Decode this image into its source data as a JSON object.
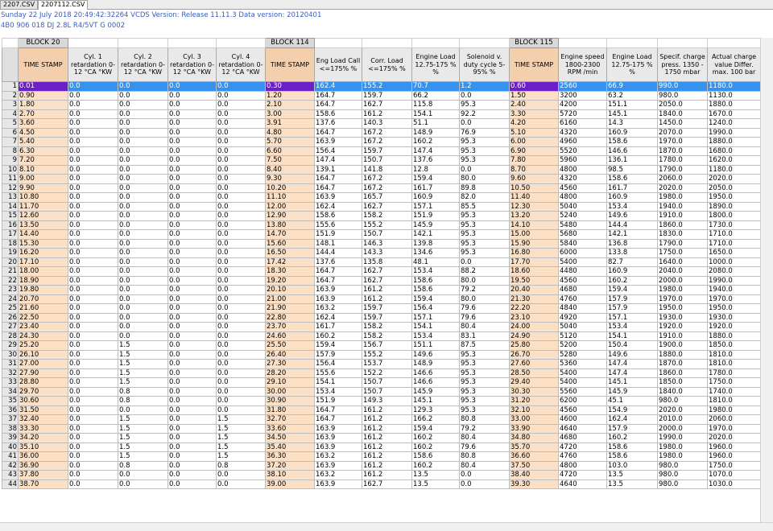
{
  "tabs": [
    {
      "label": "2207.CSV",
      "active": false
    },
    {
      "label": "2207112.CSV",
      "active": true
    }
  ],
  "info": {
    "line1": "Sunday 22 July 2018 20:49:42:32264 VCDS Version: Release 11.11.3 Data version: 20120401",
    "line2": "4B0 906 018 DJ  2.8L R4/5VT     G   0002"
  },
  "blocks": [
    "BLOCK 20",
    "BLOCK 114",
    "BLOCK 115"
  ],
  "headers": [
    "TIME STAMP",
    "Cyl. 1 retardation 0-12 °CA °KW",
    "Cyl. 2 retardation 0-12 °CA °KW",
    "Cyl. 3 retardation 0-12 °CA °KW",
    "Cyl. 4 retardation 0-12 °CA °KW",
    "TIME STAMP",
    "Eng Load Call <=175% %",
    "Corr. Load <=175% %",
    "Engine Load 12.75-175 % %",
    "Solenoid v. duty cycle 5-95% %",
    "TIME STAMP",
    "Engine speed 1800-2300 RPM /min",
    "Engine Load 12.75-175 % %",
    "Specif. charge press. 1350 - 1750 mbar",
    "Actual charge value Differ. max. 100 bar"
  ],
  "rows": [
    [
      "0.01",
      "0.0",
      "0.0",
      "0.0",
      "0.0",
      "0.30",
      "162.4",
      "155.2",
      "70.7",
      "1.2",
      "0.60",
      "2560",
      "66.9",
      "990.0",
      "1180.0"
    ],
    [
      "0.90",
      "0.0",
      "0.0",
      "0.0",
      "0.0",
      "1.20",
      "164.7",
      "159.7",
      "66.2",
      "0.0",
      "1.50",
      "3200",
      "63.2",
      "980.0",
      "1130.0"
    ],
    [
      "1.80",
      "0.0",
      "0.0",
      "0.0",
      "0.0",
      "2.10",
      "164.7",
      "162.7",
      "115.8",
      "95.3",
      "2.40",
      "4200",
      "151.1",
      "2050.0",
      "1880.0"
    ],
    [
      "2.70",
      "0.0",
      "0.0",
      "0.0",
      "0.0",
      "3.00",
      "158.6",
      "161.2",
      "154.1",
      "92.2",
      "3.30",
      "5720",
      "145.1",
      "1840.0",
      "1670.0"
    ],
    [
      "3.60",
      "0.0",
      "0.0",
      "0.0",
      "0.0",
      "3.91",
      "137.6",
      "140.3",
      "51.1",
      "0.0",
      "4.20",
      "6160",
      "14.3",
      "1450.0",
      "1240.0"
    ],
    [
      "4.50",
      "0.0",
      "0.0",
      "0.0",
      "0.0",
      "4.80",
      "164.7",
      "167.2",
      "148.9",
      "76.9",
      "5.10",
      "4320",
      "160.9",
      "2070.0",
      "1990.0"
    ],
    [
      "5.40",
      "0.0",
      "0.0",
      "0.0",
      "0.0",
      "5.70",
      "163.9",
      "167.2",
      "160.2",
      "95.3",
      "6.00",
      "4960",
      "158.6",
      "1970.0",
      "1880.0"
    ],
    [
      "6.30",
      "0.0",
      "0.0",
      "0.0",
      "0.0",
      "6.60",
      "156.4",
      "159.7",
      "147.4",
      "95.3",
      "6.90",
      "5520",
      "146.6",
      "1870.0",
      "1680.0"
    ],
    [
      "7.20",
      "0.0",
      "0.0",
      "0.0",
      "0.0",
      "7.50",
      "147.4",
      "150.7",
      "137.6",
      "95.3",
      "7.80",
      "5960",
      "136.1",
      "1780.0",
      "1620.0"
    ],
    [
      "8.10",
      "0.0",
      "0.0",
      "0.0",
      "0.0",
      "8.40",
      "139.1",
      "141.8",
      "12.8",
      "0.0",
      "8.70",
      "4800",
      "98.5",
      "1790.0",
      "1180.0"
    ],
    [
      "9.00",
      "0.0",
      "0.0",
      "0.0",
      "0.0",
      "9.30",
      "164.7",
      "167.2",
      "159.4",
      "80.0",
      "9.60",
      "4320",
      "158.6",
      "2060.0",
      "2020.0"
    ],
    [
      "9.90",
      "0.0",
      "0.0",
      "0.0",
      "0.0",
      "10.20",
      "164.7",
      "167.2",
      "161.7",
      "89.8",
      "10.50",
      "4560",
      "161.7",
      "2020.0",
      "2050.0"
    ],
    [
      "10.80",
      "0.0",
      "0.0",
      "0.0",
      "0.0",
      "11.10",
      "163.9",
      "165.7",
      "160.9",
      "82.0",
      "11.40",
      "4800",
      "160.9",
      "1980.0",
      "1950.0"
    ],
    [
      "11.70",
      "0.0",
      "0.0",
      "0.0",
      "0.0",
      "12.00",
      "162.4",
      "162.7",
      "157.1",
      "85.5",
      "12.30",
      "5040",
      "153.4",
      "1940.0",
      "1890.0"
    ],
    [
      "12.60",
      "0.0",
      "0.0",
      "0.0",
      "0.0",
      "12.90",
      "158.6",
      "158.2",
      "151.9",
      "95.3",
      "13.20",
      "5240",
      "149.6",
      "1910.0",
      "1800.0"
    ],
    [
      "13.50",
      "0.0",
      "0.0",
      "0.0",
      "0.0",
      "13.80",
      "155.6",
      "155.2",
      "145.9",
      "95.3",
      "14.10",
      "5480",
      "144.4",
      "1860.0",
      "1730.0"
    ],
    [
      "14.40",
      "0.0",
      "0.0",
      "0.0",
      "0.0",
      "14.70",
      "151.9",
      "150.7",
      "142.1",
      "95.3",
      "15.00",
      "5680",
      "142.1",
      "1830.0",
      "1710.0"
    ],
    [
      "15.30",
      "0.0",
      "0.0",
      "0.0",
      "0.0",
      "15.60",
      "148.1",
      "146.3",
      "139.8",
      "95.3",
      "15.90",
      "5840",
      "136.8",
      "1790.0",
      "1710.0"
    ],
    [
      "16.20",
      "0.0",
      "0.0",
      "0.0",
      "0.0",
      "16.50",
      "144.4",
      "143.3",
      "134.6",
      "95.3",
      "16.80",
      "6000",
      "133.8",
      "1750.0",
      "1650.0"
    ],
    [
      "17.10",
      "0.0",
      "0.0",
      "0.0",
      "0.0",
      "17.42",
      "137.6",
      "135.8",
      "48.1",
      "0.0",
      "17.70",
      "5400",
      "82.7",
      "1640.0",
      "1000.0"
    ],
    [
      "18.00",
      "0.0",
      "0.0",
      "0.0",
      "0.0",
      "18.30",
      "164.7",
      "162.7",
      "153.4",
      "88.2",
      "18.60",
      "4480",
      "160.9",
      "2040.0",
      "2080.0"
    ],
    [
      "18.90",
      "0.0",
      "0.0",
      "0.0",
      "0.0",
      "19.20",
      "164.7",
      "162.7",
      "158.6",
      "80.0",
      "19.50",
      "4560",
      "160.2",
      "2000.0",
      "1990.0"
    ],
    [
      "19.80",
      "0.0",
      "0.0",
      "0.0",
      "0.0",
      "20.10",
      "163.9",
      "161.2",
      "158.6",
      "79.2",
      "20.40",
      "4680",
      "159.4",
      "1980.0",
      "1940.0"
    ],
    [
      "20.70",
      "0.0",
      "0.0",
      "0.0",
      "0.0",
      "21.00",
      "163.9",
      "161.2",
      "159.4",
      "80.0",
      "21.30",
      "4760",
      "157.9",
      "1970.0",
      "1970.0"
    ],
    [
      "21.60",
      "0.0",
      "0.0",
      "0.0",
      "0.0",
      "21.90",
      "163.2",
      "159.7",
      "156.4",
      "79.6",
      "22.20",
      "4840",
      "157.9",
      "1950.0",
      "1950.0"
    ],
    [
      "22.50",
      "0.0",
      "0.0",
      "0.0",
      "0.0",
      "22.80",
      "162.4",
      "159.7",
      "157.1",
      "79.6",
      "23.10",
      "4920",
      "157.1",
      "1930.0",
      "1930.0"
    ],
    [
      "23.40",
      "0.0",
      "0.0",
      "0.0",
      "0.0",
      "23.70",
      "161.7",
      "158.2",
      "154.1",
      "80.4",
      "24.00",
      "5040",
      "153.4",
      "1920.0",
      "1920.0"
    ],
    [
      "24.30",
      "0.0",
      "0.0",
      "0.0",
      "0.0",
      "24.60",
      "160.2",
      "158.2",
      "153.4",
      "83.1",
      "24.90",
      "5120",
      "154.1",
      "1910.0",
      "1880.0"
    ],
    [
      "25.20",
      "0.0",
      "1.5",
      "0.0",
      "0.0",
      "25.50",
      "159.4",
      "156.7",
      "151.1",
      "87.5",
      "25.80",
      "5200",
      "150.4",
      "1900.0",
      "1850.0"
    ],
    [
      "26.10",
      "0.0",
      "1.5",
      "0.0",
      "0.0",
      "26.40",
      "157.9",
      "155.2",
      "149.6",
      "95.3",
      "26.70",
      "5280",
      "149.6",
      "1880.0",
      "1810.0"
    ],
    [
      "27.00",
      "0.0",
      "1.5",
      "0.0",
      "0.0",
      "27.30",
      "156.4",
      "153.7",
      "148.9",
      "95.3",
      "27.60",
      "5360",
      "147.4",
      "1870.0",
      "1810.0"
    ],
    [
      "27.90",
      "0.0",
      "1.5",
      "0.0",
      "0.0",
      "28.20",
      "155.6",
      "152.2",
      "146.6",
      "95.3",
      "28.50",
      "5400",
      "147.4",
      "1860.0",
      "1780.0"
    ],
    [
      "28.80",
      "0.0",
      "1.5",
      "0.0",
      "0.0",
      "29.10",
      "154.1",
      "150.7",
      "146.6",
      "95.3",
      "29.40",
      "5400",
      "145.1",
      "1850.0",
      "1750.0"
    ],
    [
      "29.70",
      "0.0",
      "0.8",
      "0.0",
      "0.0",
      "30.00",
      "153.4",
      "150.7",
      "145.9",
      "95.3",
      "30.30",
      "5560",
      "145.9",
      "1840.0",
      "1740.0"
    ],
    [
      "30.60",
      "0.0",
      "0.8",
      "0.0",
      "0.0",
      "30.90",
      "151.9",
      "149.3",
      "145.1",
      "95.3",
      "31.20",
      "6200",
      "45.1",
      "980.0",
      "1810.0"
    ],
    [
      "31.50",
      "0.0",
      "0.0",
      "0.0",
      "0.0",
      "31.80",
      "164.7",
      "161.2",
      "129.3",
      "95.3",
      "32.10",
      "4560",
      "154.9",
      "2020.0",
      "1980.0"
    ],
    [
      "32.40",
      "0.0",
      "1.5",
      "0.0",
      "1.5",
      "32.70",
      "164.7",
      "161.2",
      "166.2",
      "80.8",
      "33.00",
      "4600",
      "162.4",
      "2010.0",
      "2060.0"
    ],
    [
      "33.30",
      "0.0",
      "1.5",
      "0.0",
      "1.5",
      "33.60",
      "163.9",
      "161.2",
      "159.4",
      "79.2",
      "33.90",
      "4640",
      "157.9",
      "2000.0",
      "1970.0"
    ],
    [
      "34.20",
      "0.0",
      "1.5",
      "0.0",
      "1.5",
      "34.50",
      "163.9",
      "161.2",
      "160.2",
      "80.4",
      "34.80",
      "4680",
      "160.2",
      "1990.0",
      "2020.0"
    ],
    [
      "35.10",
      "0.0",
      "1.5",
      "0.0",
      "1.5",
      "35.40",
      "163.9",
      "161.2",
      "160.2",
      "79.6",
      "35.70",
      "4720",
      "158.6",
      "1980.0",
      "1960.0"
    ],
    [
      "36.00",
      "0.0",
      "1.5",
      "0.0",
      "1.5",
      "36.30",
      "163.2",
      "161.2",
      "158.6",
      "80.8",
      "36.60",
      "4760",
      "158.6",
      "1980.0",
      "1960.0"
    ],
    [
      "36.90",
      "0.0",
      "0.8",
      "0.0",
      "0.8",
      "37.20",
      "163.9",
      "161.2",
      "160.2",
      "80.4",
      "37.50",
      "4800",
      "103.0",
      "980.0",
      "1750.0"
    ],
    [
      "37.80",
      "0.0",
      "0.0",
      "0.0",
      "0.0",
      "38.10",
      "163.2",
      "161.2",
      "13.5",
      "0.0",
      "38.40",
      "4720",
      "13.5",
      "980.0",
      "1070.0"
    ],
    [
      "38.70",
      "0.0",
      "0.0",
      "0.0",
      "0.0",
      "39.00",
      "163.9",
      "162.7",
      "13.5",
      "0.0",
      "39.30",
      "4640",
      "13.5",
      "980.0",
      "1030.0"
    ]
  ]
}
